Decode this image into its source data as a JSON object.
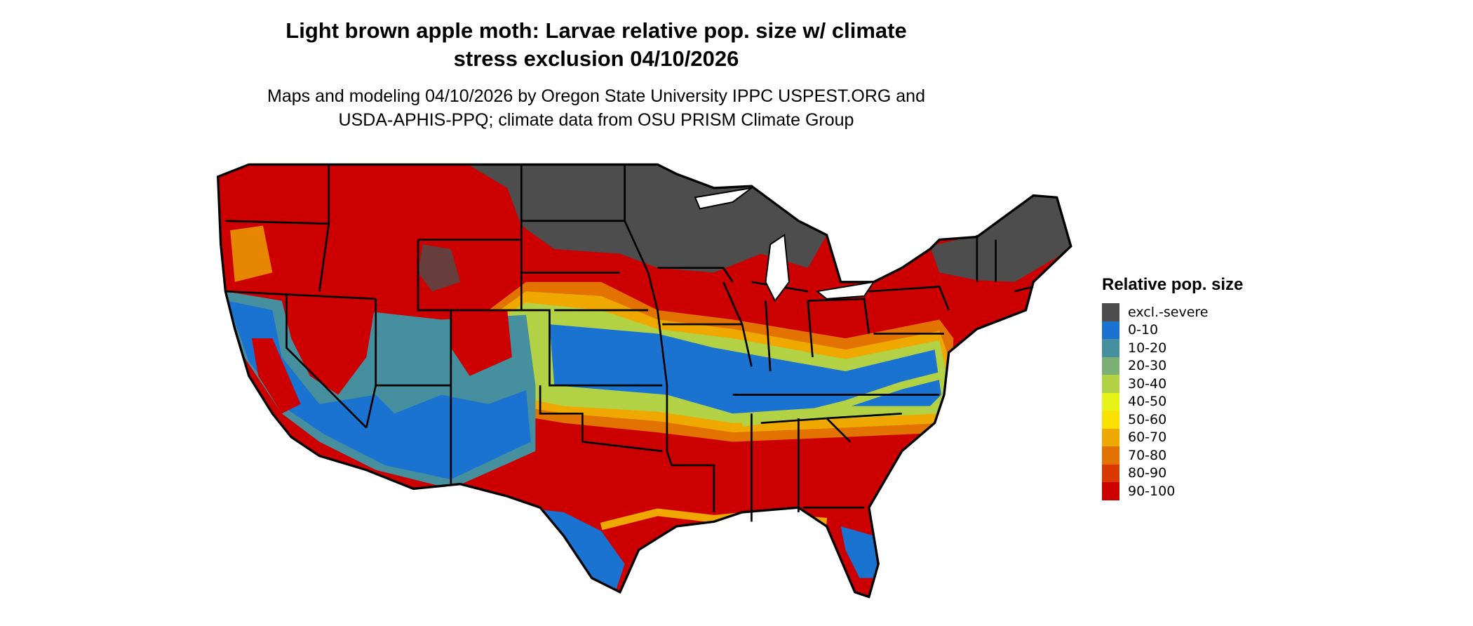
{
  "title": "Light brown apple moth: Larvae relative pop. size w/ climate stress exclusion 04/10/2026",
  "title_line1": "Light brown apple moth: Larvae relative pop. size w/ climate",
  "title_line2": "stress exclusion 04/10/2026",
  "subtitle_line1": "Maps and modeling 04/10/2026 by Oregon State University IPPC USPEST.ORG and",
  "subtitle_line2": "USDA-APHIS-PPQ; climate data from OSU PRISM Climate Group",
  "chart_data": {
    "type": "heatmap",
    "region": "Contiguous United States",
    "legend_title": "Relative pop. size",
    "legend_placement": "right",
    "classes": [
      {
        "label": "excl.-severe",
        "color": "#4d4d4d"
      },
      {
        "label": "0-10",
        "color": "#1a73d1"
      },
      {
        "label": "10-20",
        "color": "#468f9e"
      },
      {
        "label": "20-30",
        "color": "#7caf73"
      },
      {
        "label": "30-40",
        "color": "#b2d145"
      },
      {
        "label": "40-50",
        "color": "#e4f217"
      },
      {
        "label": "50-60",
        "color": "#fae100"
      },
      {
        "label": "60-70",
        "color": "#eea800"
      },
      {
        "label": "70-80",
        "color": "#e27300"
      },
      {
        "label": "80-90",
        "color": "#d93800"
      },
      {
        "label": "90-100",
        "color": "#cc0000"
      }
    ]
  }
}
